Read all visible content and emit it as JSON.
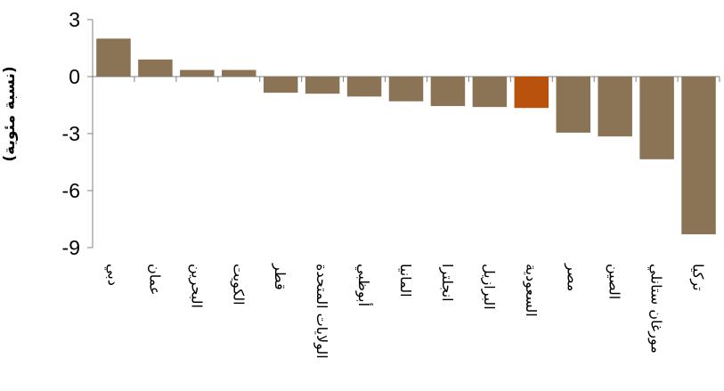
{
  "chart_data": {
    "type": "bar",
    "ylabel": "(نسبة مئوية)",
    "ylim": [
      -9,
      3
    ],
    "yticks": [
      3,
      0,
      -3,
      -6,
      -9
    ],
    "yticklabels": [
      "3",
      "0",
      "-3",
      "-6",
      "-9"
    ],
    "grid": false,
    "categories": [
      "دبي",
      "عمان",
      "البحرين",
      "الكويت",
      "قطر",
      "الولايات المتحدة",
      "أبوظبي",
      "المانيا",
      "انجلترا",
      "البرازيل",
      "السعودية",
      "مصر",
      "الصين",
      "مورغان ستانلي",
      "تركيا"
    ],
    "values": [
      2.0,
      0.9,
      0.35,
      0.35,
      -0.85,
      -0.9,
      -1.05,
      -1.3,
      -1.55,
      -1.6,
      -1.65,
      -2.95,
      -3.15,
      -4.35,
      -8.3
    ],
    "colors": {
      "default": "#8B7355",
      "highlight": "#B8520C",
      "highlight_category": "السعودية",
      "axis": "#808080"
    }
  }
}
